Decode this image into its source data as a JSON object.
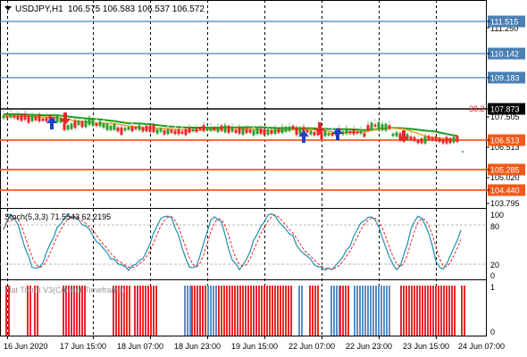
{
  "header": {
    "symbol": "USDJPY,H1",
    "ohlc": "106.575 106.583 106.537 106.572"
  },
  "price_axis": {
    "ticks": [
      "111.515",
      "111.250",
      "110.142",
      "109.183",
      "107.873",
      "107.505",
      "106.513",
      "105.285",
      "105.020",
      "104.440",
      "103.795"
    ],
    "level_labels": [
      {
        "value": "111.515",
        "color": "#4a7fb5"
      },
      {
        "value": "110.142",
        "color": "#4a7fb5"
      },
      {
        "value": "109.183",
        "color": "#4a7fb5"
      },
      {
        "value": "107.873",
        "color": "#000000"
      },
      {
        "value": "106.513",
        "color": "#f05a1a"
      },
      {
        "value": "105.285",
        "color": "#f05a1a"
      },
      {
        "value": "104.440",
        "color": "#f05a1a"
      }
    ],
    "fib_label": "38.2"
  },
  "stoch": {
    "title": "Stoch(5,3,3) 71.5543 62.2195",
    "ticks": [
      "100",
      "80",
      "20",
      "0"
    ]
  },
  "flat_trend": {
    "title": "Flat Trend V3(Current Timeframe)",
    "ticks": [
      "1",
      "0"
    ],
    "colors": {
      "bull": "#e8262a",
      "bear": "#5b8dc2"
    }
  },
  "time_axis": {
    "labels": [
      "16 Jun 2020",
      "17 Jun 15:00",
      "18 Jun 07:00",
      "18 Jun 23:00",
      "19 Jun 15:00",
      "22 Jun 07:00",
      "22 Jun 23:00",
      "23 Jun 15:00",
      "24 Jun 07:00"
    ]
  },
  "colors": {
    "ma_green": "#1b9a1b",
    "ma_orange": "#f0a020",
    "candle_up": "#2ca02c",
    "candle_down": "#e8262a",
    "stoch_main": "#1e90b0",
    "stoch_signal": "#e8262a"
  }
}
